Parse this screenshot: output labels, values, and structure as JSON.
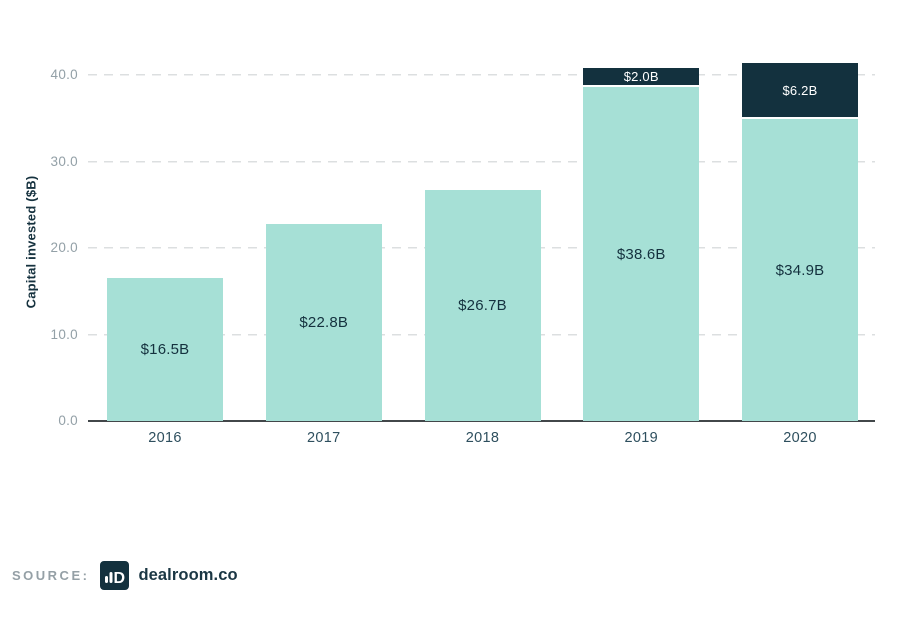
{
  "page": {
    "background": "#ffffff"
  },
  "colors": {
    "teal": "#a6e0d6",
    "navy": "#13313e",
    "tick_gray": "#93a0a7",
    "x_label_navy": "#2e4f5e",
    "gridline": "#dcdfe0",
    "axis_line": "#42474a",
    "value_label_navy": "#14313e",
    "segment_label_white": "#ffffff",
    "source_label_gray": "#95a0a6",
    "source_name_navy": "#1b3744"
  },
  "chart_data": {
    "type": "bar",
    "stacked": true,
    "title": "",
    "xlabel": "",
    "ylabel": "Capital invested ($B)",
    "categories": [
      "2016",
      "2017",
      "2018",
      "2019",
      "2020"
    ],
    "series": [
      {
        "name": "bottom-segment",
        "color_key": "teal",
        "values": [
          16.5,
          22.8,
          26.7,
          38.6,
          34.9
        ],
        "labels": [
          "$16.5B",
          "$22.8B",
          "$26.7B",
          "$38.6B",
          "$34.9B"
        ]
      },
      {
        "name": "top-segment",
        "color_key": "navy",
        "values": [
          0,
          0,
          0,
          2.0,
          6.2
        ],
        "labels": [
          "",
          "",
          "",
          "$2.0B",
          "$6.2B"
        ]
      }
    ],
    "ylim": [
      0,
      40
    ],
    "yticks": [
      "0.0",
      "10.0",
      "20.0",
      "30.0",
      "40.0"
    ],
    "grid": "horizontal-dashed",
    "legend": "none"
  },
  "source": {
    "label": "SOURCE:",
    "logo": "dealroom-logo",
    "name": "dealroom.co"
  }
}
